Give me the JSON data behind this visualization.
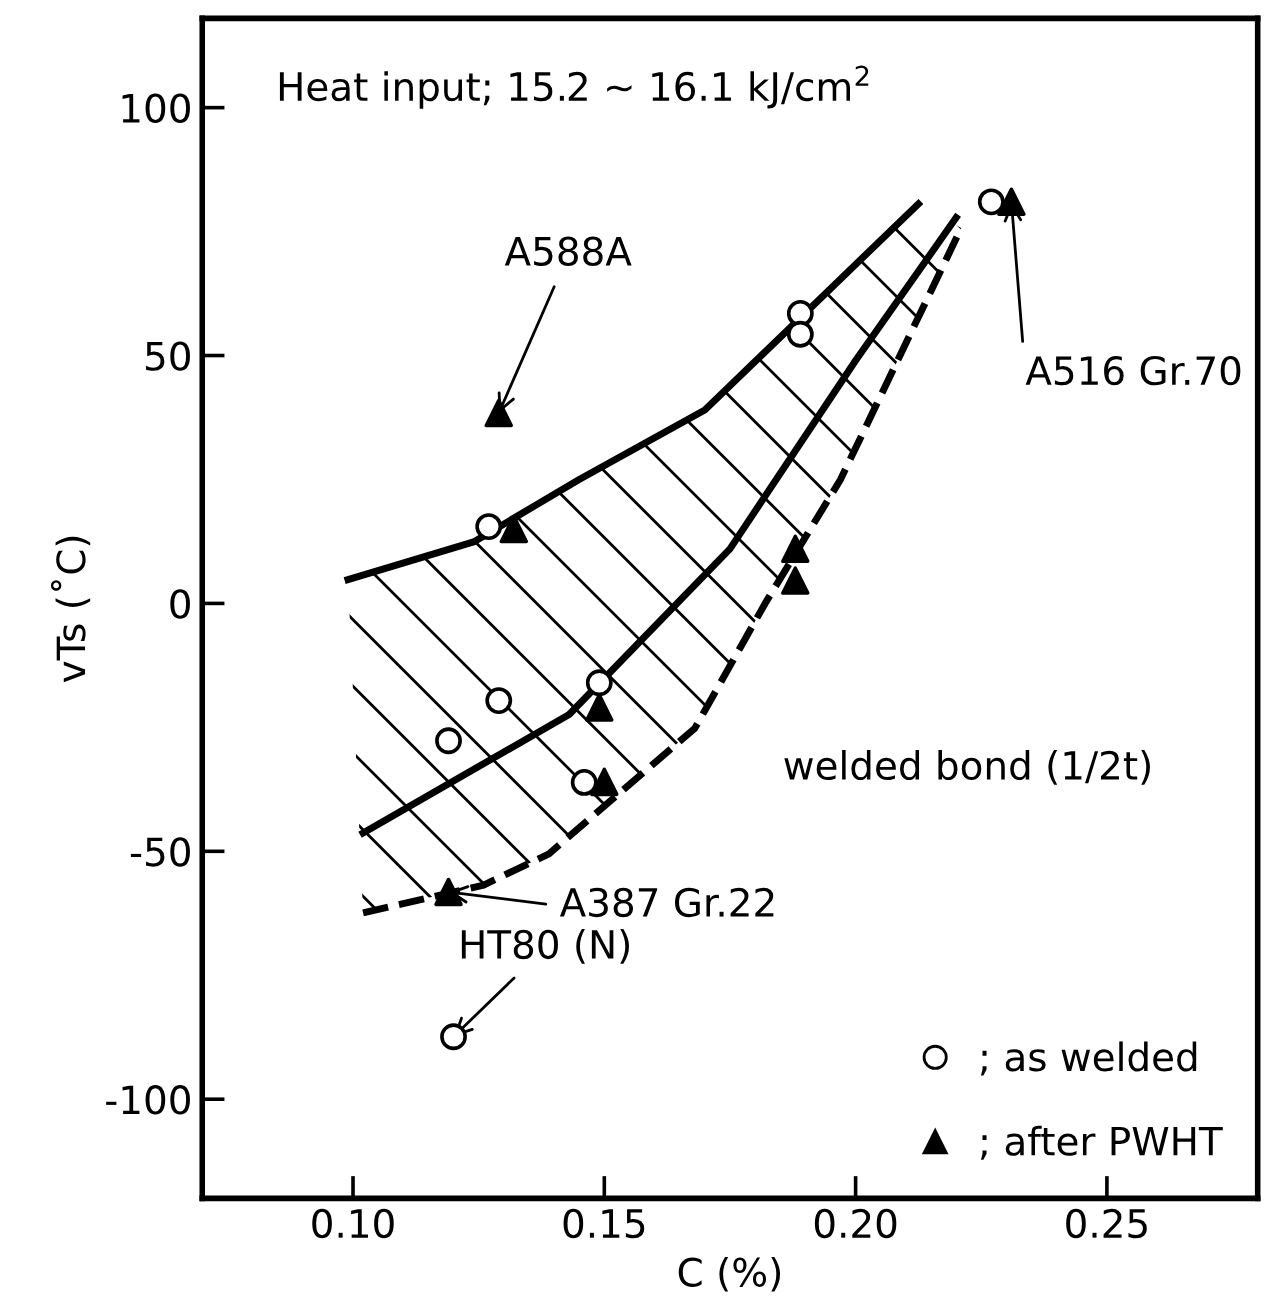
{
  "chart_data": {
    "type": "scatter",
    "xlabel": "C (%)",
    "ylabel": "vTs (˚C)",
    "xlim": [
      0.07,
      0.28
    ],
    "ylim": [
      -120,
      118
    ],
    "xticks": [
      {
        "value": 0.1,
        "label": "0.10"
      },
      {
        "value": 0.15,
        "label": "0.15"
      },
      {
        "value": 0.2,
        "label": "0.20"
      },
      {
        "value": 0.25,
        "label": "0.25"
      }
    ],
    "yticks": [
      -100,
      -50,
      0,
      50,
      100
    ],
    "grid": false,
    "legend": "bottom right",
    "series": [
      {
        "type": "line",
        "color": "#000000",
        "line_style": "solid",
        "marker": "none",
        "x": [
          0.099,
          0.124,
          0.145,
          0.17,
          0.2125
        ],
        "values": [
          4.8,
          12.4,
          25,
          39,
          80.6
        ]
      },
      {
        "type": "line",
        "color": "#000000",
        "line_style": "solid",
        "marker": "none",
        "x": [
          0.102,
          0.143,
          0.175,
          0.2,
          0.22
        ],
        "values": [
          -46.3,
          -22.4,
          11,
          49,
          77.8
        ]
      },
      {
        "type": "line",
        "color": "#000000",
        "line_style": "dashed",
        "marker": "none",
        "x": [
          0.102,
          0.126,
          0.139,
          0.168,
          0.182,
          0.197,
          0.221
        ],
        "values": [
          -62.4,
          -56.8,
          -50.5,
          -25.2,
          0,
          25,
          75.7
        ]
      },
      {
        "name": "; as welded",
        "color": "#000000",
        "marker": "circle",
        "x": [
          0.227,
          0.189,
          0.189,
          0.127,
          0.149,
          0.129,
          0.119,
          0.146,
          0.12
        ],
        "values": [
          81,
          58.5,
          54.3,
          15.5,
          -16,
          -19.6,
          -27.7,
          -36.1,
          -87.4
        ]
      },
      {
        "name": "; after PWHT",
        "color": "#000000",
        "marker": "triangle",
        "x": [
          0.231,
          0.129,
          0.132,
          0.188,
          0.188,
          0.149,
          0.15,
          0.119
        ],
        "values": [
          81,
          38.4,
          15,
          11,
          4.6,
          -21,
          -36,
          -58.2
        ]
      }
    ],
    "annotations": [
      "Heat input; 15.2 ~ 16.1 kJ/cm$^{2}$",
      "welded bond (1/2t)",
      {
        "text": "A588A",
        "x": 0.129,
        "y": 38.4
      },
      {
        "text": "A516 Gr.70",
        "x": 0.231,
        "y": 81
      },
      {
        "text": "A387 Gr.22",
        "x": 0.119,
        "y": -58.2
      },
      {
        "text": "HT80 (N)",
        "x": 0.12,
        "y": -87.4
      }
    ]
  }
}
